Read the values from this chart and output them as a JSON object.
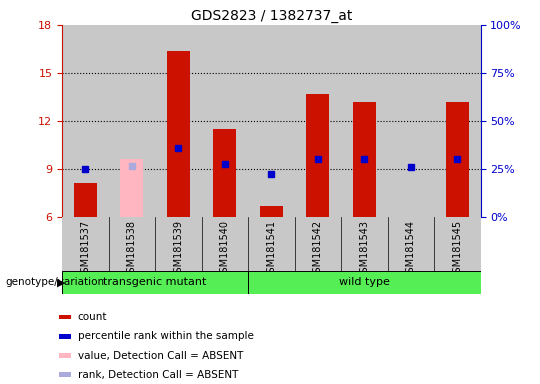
{
  "title": "GDS2823 / 1382737_at",
  "samples": [
    "GSM181537",
    "GSM181538",
    "GSM181539",
    "GSM181540",
    "GSM181541",
    "GSM181542",
    "GSM181543",
    "GSM181544",
    "GSM181545"
  ],
  "count_values": [
    8.1,
    null,
    16.4,
    11.5,
    6.7,
    13.7,
    13.2,
    null,
    13.2
  ],
  "rank_values": [
    9.0,
    null,
    10.3,
    9.3,
    8.7,
    9.6,
    9.6,
    9.1,
    9.6
  ],
  "absent_count": [
    null,
    9.6,
    null,
    null,
    null,
    null,
    null,
    null,
    null
  ],
  "absent_rank": [
    null,
    9.2,
    null,
    null,
    null,
    null,
    null,
    null,
    null
  ],
  "ylim_left": [
    6,
    18
  ],
  "ylim_right": [
    0,
    100
  ],
  "yticks_left": [
    6,
    9,
    12,
    15,
    18
  ],
  "yticks_right": [
    0,
    25,
    50,
    75,
    100
  ],
  "ytick_labels_right": [
    "0%",
    "25%",
    "50%",
    "75%",
    "100%"
  ],
  "bar_width": 0.5,
  "color_count": "#CC1100",
  "color_rank": "#0000CC",
  "color_absent_count": "#FFB6C1",
  "color_absent_rank": "#AAAADD",
  "group_labels": [
    "transgenic mutant",
    "wild type"
  ],
  "group_ranges": [
    [
      0,
      3
    ],
    [
      4,
      8
    ]
  ],
  "group_color": "#55EE55",
  "annotation_label": "genotype/variation",
  "legend_items": [
    {
      "label": "count",
      "color": "#CC1100"
    },
    {
      "label": "percentile rank within the sample",
      "color": "#0000CC"
    },
    {
      "label": "value, Detection Call = ABSENT",
      "color": "#FFB6C1"
    },
    {
      "label": "rank, Detection Call = ABSENT",
      "color": "#AAAADD"
    }
  ],
  "dotted_yticks": [
    9,
    12,
    15
  ],
  "bg_color": "#C8C8C8",
  "plot_bg": "#FFFFFF"
}
